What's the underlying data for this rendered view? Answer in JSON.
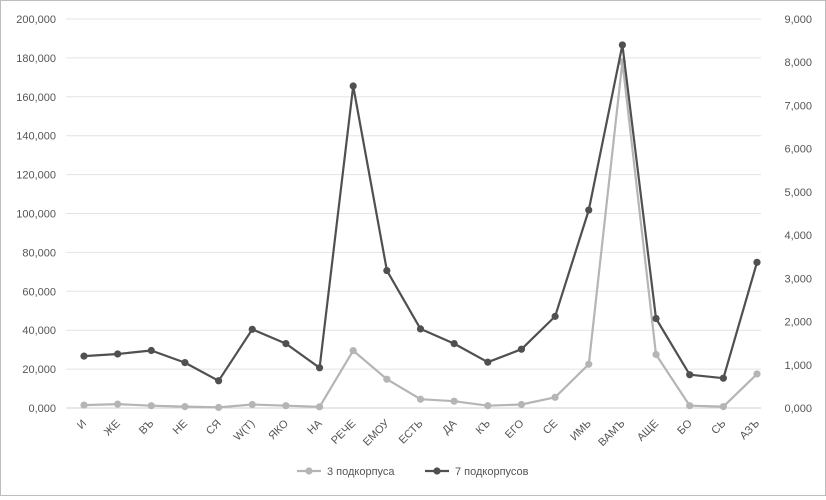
{
  "chart_data": {
    "type": "line",
    "categories": [
      "И",
      "ЖЕ",
      "ВЪ",
      "НЕ",
      "СЯ",
      "W(Т)",
      "ЯКО",
      "НА",
      "РЕЧЕ",
      "ЕМОУ",
      "ЕСТЬ",
      "ДА",
      "КЪ",
      "ЕГО",
      "СЕ",
      "ИМЬ",
      "ВАМЪ",
      "АЩЕ",
      "БО",
      "СЬ",
      "АЗЪ"
    ],
    "series": [
      {
        "name": "3 подкорпуса",
        "axis": "left",
        "color": "#b5b5b5",
        "values": [
          1500,
          2000,
          1200,
          700,
          300,
          1800,
          1200,
          600,
          29500,
          14800,
          4500,
          3500,
          1200,
          1800,
          5500,
          22500,
          178000,
          27500,
          1200,
          700,
          17500
        ]
      },
      {
        "name": "7 подкорпусов",
        "axis": "right",
        "color": "#505050",
        "values": [
          1200,
          1250,
          1330,
          1050,
          630,
          1820,
          1490,
          930,
          7450,
          3180,
          1830,
          1490,
          1060,
          1360,
          2120,
          4580,
          8400,
          2070,
          770,
          690,
          3370
        ]
      }
    ],
    "y_left": {
      "min": 0,
      "max": 200000,
      "step": 20000,
      "tick_labels": [
        "0,000",
        "20,000",
        "40,000",
        "60,000",
        "80,000",
        "100,000",
        "120,000",
        "140,000",
        "160,000",
        "180,000",
        "200,000"
      ]
    },
    "y_right": {
      "min": 0,
      "max": 9000,
      "step": 1000,
      "tick_labels": [
        "0,000",
        "1,000",
        "2,000",
        "3,000",
        "4,000",
        "5,000",
        "6,000",
        "7,000",
        "8,000",
        "9,000"
      ]
    },
    "grid": true,
    "legend_position": "bottom"
  }
}
